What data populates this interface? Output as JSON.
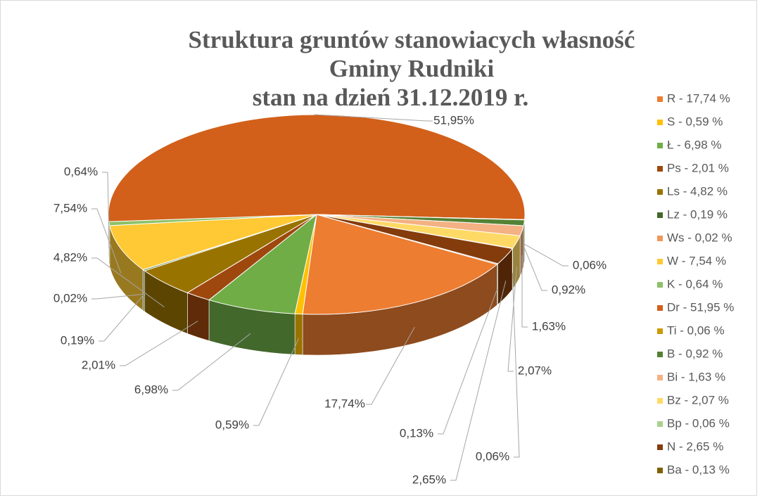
{
  "chart_data": {
    "type": "pie",
    "title": [
      "Struktura gruntów stanowiacych własność",
      "Gminy Rudniki",
      "stan na dzień 31.12.2019 r."
    ],
    "categories": [
      "R - 17,74 %",
      "S - 0,59 %",
      "Ł - 6,98 %",
      "Ps - 2,01 %",
      "Ls - 4,82 %",
      "Lz - 0,19 %",
      "Ws - 0,02 %",
      "W - 7,54 %",
      "K - 0,64 %",
      "Dr - 51,95 %",
      "Ti - 0,06 %",
      "B - 0,92 %",
      "Bi - 1,63 %",
      "Bz - 2,07 %",
      "Bp - 0,06 %",
      "N - 2,65 %",
      "Ba - 0,13 %"
    ],
    "values": [
      17.74,
      0.59,
      6.98,
      2.01,
      4.82,
      0.19,
      0.02,
      7.54,
      0.64,
      51.95,
      0.06,
      0.92,
      1.63,
      2.07,
      0.06,
      2.65,
      0.13
    ],
    "value_labels": [
      "17,74%",
      "0,59%",
      "6,98%",
      "2,01%",
      "4,82%",
      "0,19%",
      "0,02%",
      "7,54%",
      "0,64%",
      "51,95%",
      "0,06%",
      "0,92%",
      "1,63%",
      "2,07%",
      "0,06%",
      "2,65%",
      "0,13%"
    ],
    "colors": [
      "#ed7d31",
      "#ffc000",
      "#70ad47",
      "#9e480e",
      "#997300",
      "#43682b",
      "#f1975a",
      "#ffc935",
      "#8cc168",
      "#d2601a",
      "#cc9a00",
      "#548235",
      "#f4b183",
      "#ffd966",
      "#a9d18e",
      "#843c0c",
      "#7f6000"
    ],
    "legend": "right"
  }
}
